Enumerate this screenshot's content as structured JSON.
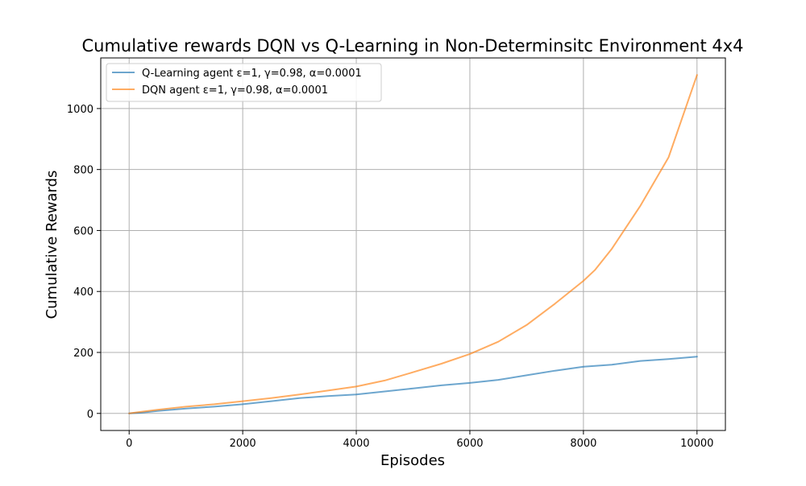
{
  "chart_data": {
    "type": "line",
    "title": "Cumulative rewards DQN vs Q-Learning in Non-Determinsitc Environment 4x4",
    "xlabel": "Episodes",
    "ylabel": "Cumulative Rewards",
    "xlim": [
      -500,
      10500
    ],
    "ylim": [
      -56,
      1166
    ],
    "xticks": [
      0,
      2000,
      4000,
      6000,
      8000,
      10000
    ],
    "yticks": [
      0,
      200,
      400,
      600,
      800,
      1000
    ],
    "grid": true,
    "legend_position": "upper-left",
    "series": [
      {
        "name": "Q-Learning agent ε=1, γ=0.98, α=0.0001",
        "color": "#1f77b4",
        "x": [
          0,
          200,
          500,
          1000,
          1500,
          2000,
          2500,
          3000,
          3500,
          4000,
          4500,
          5000,
          5500,
          6000,
          6500,
          7000,
          7500,
          8000,
          8500,
          9000,
          9500,
          10000
        ],
        "y": [
          0,
          2,
          8,
          16,
          22,
          30,
          40,
          50,
          57,
          62,
          72,
          82,
          92,
          100,
          110,
          125,
          140,
          153,
          160,
          172,
          178,
          186
        ]
      },
      {
        "name": "DQN agent ε=1, γ=0.98, α=0.0001",
        "color": "#ff7f0e",
        "x": [
          0,
          200,
          500,
          1000,
          1500,
          2000,
          2500,
          3000,
          3500,
          4000,
          4500,
          5000,
          5500,
          6000,
          6500,
          7000,
          7500,
          8000,
          8200,
          8500,
          9000,
          9500,
          10000
        ],
        "y": [
          0,
          5,
          12,
          22,
          30,
          40,
          50,
          62,
          75,
          88,
          108,
          135,
          163,
          195,
          235,
          290,
          360,
          435,
          470,
          540,
          680,
          840,
          1110
        ]
      }
    ]
  }
}
